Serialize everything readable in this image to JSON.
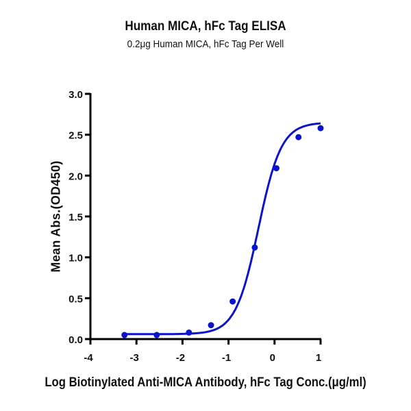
{
  "chart_data": {
    "type": "line",
    "title": "Human MICA, hFc Tag ELISA",
    "subtitle": "0.2μg Human MICA, hFc Tag Per Well",
    "xlabel": "Log Biotinylated Anti-MICA Antibody, hFc Tag Conc.(μg/ml)",
    "ylabel": "Mean Abs.(OD450)",
    "xlim": [
      -4,
      1
    ],
    "ylim": [
      0,
      3.0
    ],
    "x_ticks": [
      "-4",
      "-3",
      "-2",
      "-1",
      "0",
      "1"
    ],
    "y_ticks": [
      "0.0",
      "0.5",
      "1.0",
      "1.5",
      "2.0",
      "2.5",
      "3.0"
    ],
    "grid": false,
    "legend": null,
    "series": [
      {
        "name": "Human MICA, hFc Tag",
        "color": "#0a14c8",
        "fit": "sigmoidal 4PL",
        "x": [
          -3.26,
          -2.56,
          -1.86,
          -1.38,
          -0.91,
          -0.43,
          0.04,
          0.52,
          1.0
        ],
        "y": [
          0.05,
          0.05,
          0.08,
          0.17,
          0.46,
          1.12,
          2.09,
          2.47,
          2.58
        ]
      }
    ]
  }
}
